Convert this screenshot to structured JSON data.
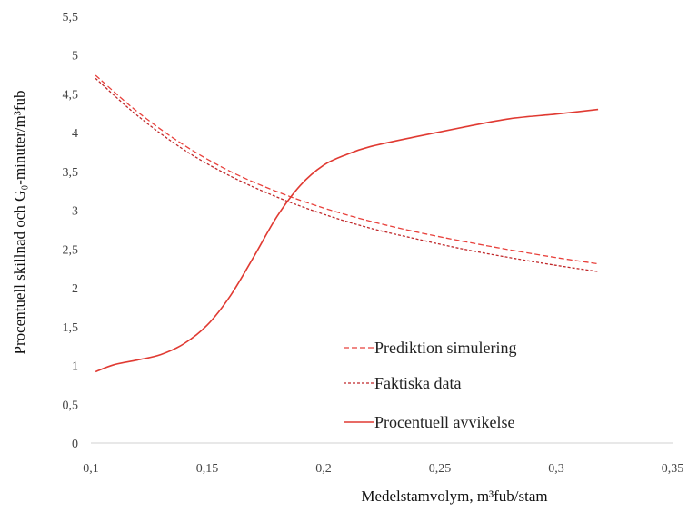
{
  "chart_data": {
    "type": "line",
    "title": "",
    "xlabel": "Medelstamvolym, m³fub/stam",
    "ylabel": "Procentuell skillnad och G₀-minuter/m³fub",
    "xlim": [
      0.1,
      0.35
    ],
    "ylim": [
      0,
      5.5
    ],
    "x_ticks": [
      0.1,
      0.15,
      0.2,
      0.25,
      0.3,
      0.35
    ],
    "y_ticks": [
      0,
      0.5,
      1,
      1.5,
      2,
      2.5,
      3,
      3.5,
      4,
      4.5,
      5,
      5.5
    ],
    "x_tick_labels": [
      "0,1",
      "0,15",
      "0,2",
      "0,25",
      "0,3",
      "0,35"
    ],
    "y_tick_labels": [
      "0",
      "0,5",
      "1",
      "1,5",
      "2",
      "2,5",
      "3",
      "3,5",
      "4",
      "4,5",
      "5",
      "5,5"
    ],
    "grid": false,
    "legend_position": "bottom-right",
    "series": [
      {
        "name": "Prediktion simulering",
        "style": "dashed",
        "color": "#E8413C",
        "x": [
          0.102,
          0.12,
          0.14,
          0.16,
          0.18,
          0.2,
          0.22,
          0.24,
          0.26,
          0.28,
          0.3,
          0.318
        ],
        "y": [
          4.74,
          4.27,
          3.84,
          3.5,
          3.24,
          3.03,
          2.86,
          2.72,
          2.6,
          2.49,
          2.39,
          2.31
        ]
      },
      {
        "name": "Faktiska data",
        "style": "dotted",
        "color": "#C0282A",
        "x": [
          0.102,
          0.12,
          0.14,
          0.16,
          0.18,
          0.2,
          0.22,
          0.24,
          0.26,
          0.28,
          0.3,
          0.318
        ],
        "y": [
          4.7,
          4.22,
          3.78,
          3.44,
          3.17,
          2.95,
          2.77,
          2.63,
          2.5,
          2.39,
          2.29,
          2.21
        ]
      },
      {
        "name": "Procentuell avvikelse",
        "style": "solid",
        "color": "#E03A32",
        "x": [
          0.102,
          0.11,
          0.12,
          0.13,
          0.14,
          0.15,
          0.16,
          0.17,
          0.18,
          0.19,
          0.2,
          0.21,
          0.22,
          0.24,
          0.26,
          0.28,
          0.3,
          0.318
        ],
        "y": [
          0.92,
          1.01,
          1.07,
          1.14,
          1.28,
          1.52,
          1.9,
          2.4,
          2.92,
          3.32,
          3.58,
          3.72,
          3.82,
          3.95,
          4.07,
          4.18,
          4.24,
          4.3
        ]
      }
    ]
  }
}
